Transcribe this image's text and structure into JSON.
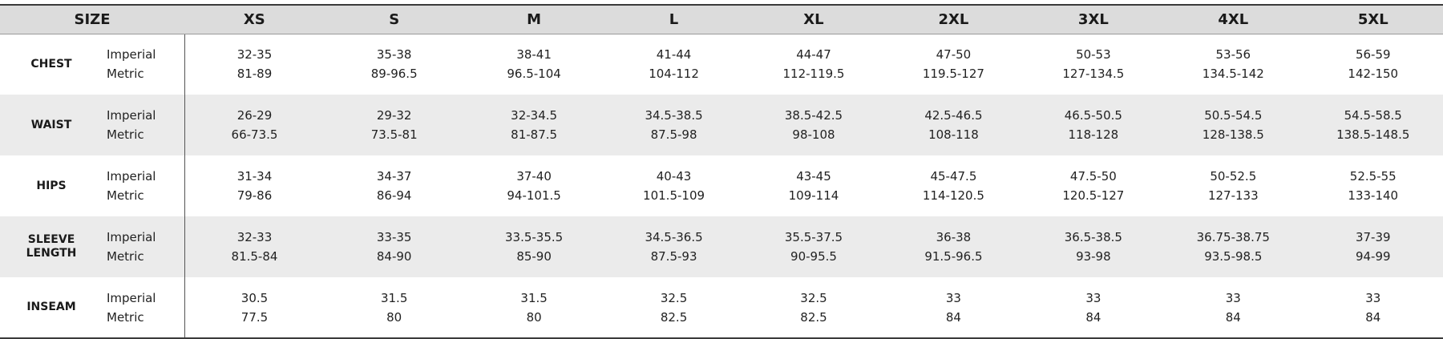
{
  "header": {
    "size_label": "SIZE",
    "sizes": [
      "XS",
      "S",
      "M",
      "L",
      "XL",
      "2XL",
      "3XL",
      "4XL",
      "5XL"
    ]
  },
  "rows": [
    {
      "name_lines": [
        "CHEST"
      ],
      "imperial_label": "Imperial",
      "metric_label": "Metric",
      "imperial": [
        "32-35",
        "35-38",
        "38-41",
        "41-44",
        "44-47",
        "47-50",
        "50-53",
        "53-56",
        "56-59"
      ],
      "metric": [
        "81-89",
        "89-96.5",
        "96.5-104",
        "104-112",
        "112-119.5",
        "119.5-127",
        "127-134.5",
        "134.5-142",
        "142-150"
      ]
    },
    {
      "name_lines": [
        "WAIST"
      ],
      "imperial_label": "Imperial",
      "metric_label": "Metric",
      "imperial": [
        "26-29",
        "29-32",
        "32-34.5",
        "34.5-38.5",
        "38.5-42.5",
        "42.5-46.5",
        "46.5-50.5",
        "50.5-54.5",
        "54.5-58.5"
      ],
      "metric": [
        "66-73.5",
        "73.5-81",
        "81-87.5",
        "87.5-98",
        "98-108",
        "108-118",
        "118-128",
        "128-138.5",
        "138.5-148.5"
      ]
    },
    {
      "name_lines": [
        "HIPS"
      ],
      "imperial_label": "Imperial",
      "metric_label": "Metric",
      "imperial": [
        "31-34",
        "34-37",
        "37-40",
        "40-43",
        "43-45",
        "45-47.5",
        "47.5-50",
        "50-52.5",
        "52.5-55"
      ],
      "metric": [
        "79-86",
        "86-94",
        "94-101.5",
        "101.5-109",
        "109-114",
        "114-120.5",
        "120.5-127",
        "127-133",
        "133-140"
      ]
    },
    {
      "name_lines": [
        "SLEEVE",
        "LENGTH"
      ],
      "imperial_label": "Imperial",
      "metric_label": "Metric",
      "imperial": [
        "32-33",
        "33-35",
        "33.5-35.5",
        "34.5-36.5",
        "35.5-37.5",
        "36-38",
        "36.5-38.5",
        "36.75-38.75",
        "37-39"
      ],
      "metric": [
        "81.5-84",
        "84-90",
        "85-90",
        "87.5-93",
        "90-95.5",
        "91.5-96.5",
        "93-98",
        "93.5-98.5",
        "94-99"
      ]
    },
    {
      "name_lines": [
        "INSEAM"
      ],
      "imperial_label": "Imperial",
      "metric_label": "Metric",
      "imperial": [
        "30.5",
        "31.5",
        "31.5",
        "32.5",
        "32.5",
        "33",
        "33",
        "33",
        "33"
      ],
      "metric": [
        "77.5",
        "80",
        "80",
        "82.5",
        "82.5",
        "84",
        "84",
        "84",
        "84"
      ]
    }
  ]
}
